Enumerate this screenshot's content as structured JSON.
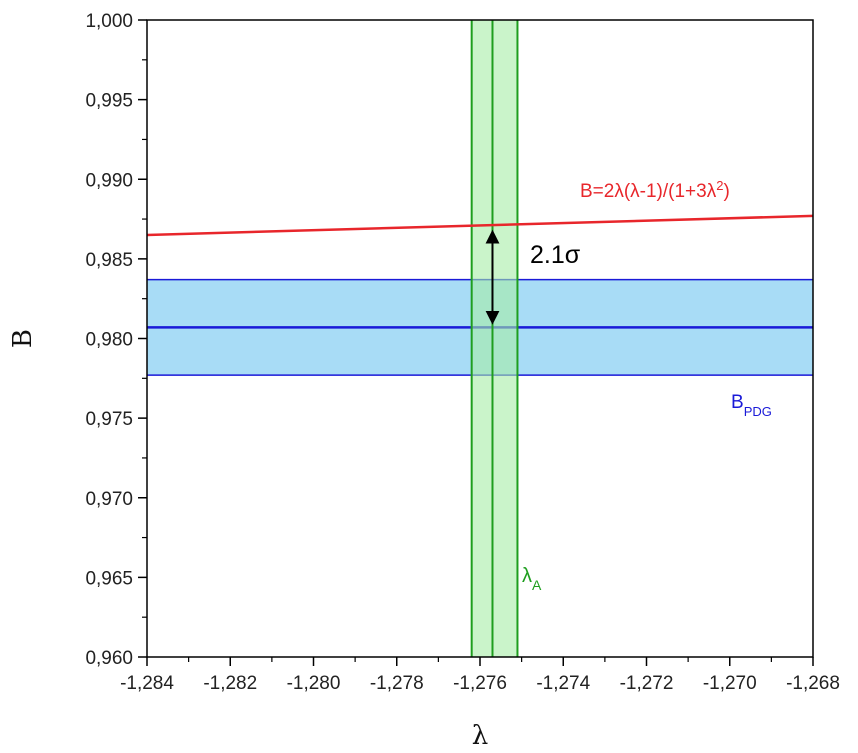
{
  "chart_data": {
    "type": "line",
    "title": "",
    "xlabel": "λ",
    "ylabel": "B",
    "xlim": [
      -1.284,
      -1.268
    ],
    "ylim": [
      0.96,
      1.0
    ],
    "x_ticks": [
      -1.284,
      -1.282,
      -1.28,
      -1.278,
      -1.276,
      -1.274,
      -1.272,
      -1.27,
      -1.268
    ],
    "x_tick_labels": [
      "-1,284",
      "-1,282",
      "-1,280",
      "-1,278",
      "-1,276",
      "-1,274",
      "-1,272",
      "-1,270",
      "-1,268"
    ],
    "y_ticks": [
      0.96,
      0.965,
      0.97,
      0.975,
      0.98,
      0.985,
      0.99,
      0.995,
      1.0
    ],
    "y_tick_labels": [
      "0,960",
      "0,965",
      "0,970",
      "0,975",
      "0,980",
      "0,985",
      "0,990",
      "0,995",
      "1,000"
    ],
    "grid": false,
    "series": [
      {
        "name": "B=2λ(λ-1)/(1+3λ²)",
        "label_main": "B=2λ(λ-1)/(1+3λ",
        "label_sup": "2",
        "label_end": ")",
        "color": "#e8262b",
        "x": [
          -1.284,
          -1.268
        ],
        "y": [
          0.9865,
          0.9877
        ]
      }
    ],
    "horizontal_band": {
      "name": "B_PDG",
      "label_main": "B",
      "label_sub": "PDG",
      "center": 0.9807,
      "low": 0.9777,
      "high": 0.9837,
      "line_color": "#1a1ad8",
      "fill_color": "#9fd8f5"
    },
    "vertical_band": {
      "name": "λ_A",
      "label_main": "λ",
      "label_sub": "A",
      "center": -1.2757,
      "low": -1.2762,
      "high": -1.2751,
      "line_color": "#1e9e1e",
      "fill_color": "#a6eca6"
    },
    "annotation": {
      "text": "2.1σ",
      "x": -1.2757,
      "y_from": 0.987,
      "y_to": 0.9807
    }
  }
}
